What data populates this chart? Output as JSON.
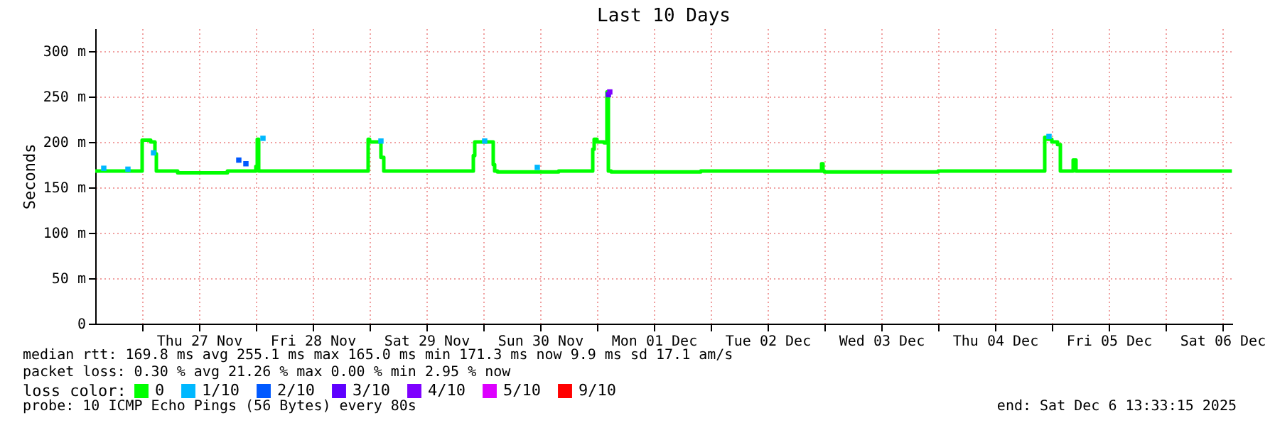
{
  "chart_data": {
    "type": "step",
    "title": "Last 10 Days",
    "ylabel": "Seconds",
    "legend_title": "loss color:",
    "xlim": [
      "2025-11-26T14:06",
      "2025-12-06T14:06"
    ],
    "xticks": [
      {
        "value": "2025-11-27T00:00",
        "label": null
      },
      {
        "value": "2025-11-27T12:00",
        "label": "Thu 27 Nov"
      },
      {
        "value": "2025-11-28T00:00",
        "label": null
      },
      {
        "value": "2025-11-28T12:00",
        "label": "Fri 28 Nov"
      },
      {
        "value": "2025-11-29T00:00",
        "label": null
      },
      {
        "value": "2025-11-29T12:00",
        "label": "Sat 29 Nov"
      },
      {
        "value": "2025-11-30T00:00",
        "label": null
      },
      {
        "value": "2025-11-30T12:00",
        "label": "Sun 30 Nov"
      },
      {
        "value": "2025-12-01T00:00",
        "label": null
      },
      {
        "value": "2025-12-01T12:00",
        "label": "Mon 01 Dec"
      },
      {
        "value": "2025-12-02T00:00",
        "label": null
      },
      {
        "value": "2025-12-02T12:00",
        "label": "Tue 02 Dec"
      },
      {
        "value": "2025-12-03T00:00",
        "label": null
      },
      {
        "value": "2025-12-03T12:00",
        "label": "Wed 03 Dec"
      },
      {
        "value": "2025-12-04T00:00",
        "label": null
      },
      {
        "value": "2025-12-04T12:00",
        "label": "Thu 04 Dec"
      },
      {
        "value": "2025-12-05T00:00",
        "label": null
      },
      {
        "value": "2025-12-05T12:00",
        "label": "Fri 05 Dec"
      },
      {
        "value": "2025-12-06T00:00",
        "label": null
      },
      {
        "value": "2025-12-06T12:00",
        "label": "Sat 06 Dec"
      }
    ],
    "ylim": [
      0,
      325
    ],
    "yticks": [
      0,
      {
        "value": 50,
        "label": "50 m"
      },
      {
        "value": 100,
        "label": "100 m"
      },
      {
        "value": 150,
        "label": "150 m"
      },
      {
        "value": 200,
        "label": "200 m"
      },
      {
        "value": 250,
        "label": "250 m"
      },
      {
        "value": 300,
        "label": "300 m"
      }
    ],
    "grid": true,
    "legend": "bottom",
    "series": [
      {
        "name": "0",
        "color": "#00ff00",
        "x": [
          "2025-11-26T14:06",
          "2025-11-26T23:42",
          "2025-11-27T00:00",
          "2025-11-27T01:48",
          "2025-11-27T02:42",
          "2025-11-27T03:00",
          "2025-11-27T07:30",
          "2025-11-27T16:30",
          "2025-11-27T18:00",
          "2025-11-28T00:00",
          "2025-11-28T00:18",
          "2025-11-28T00:36",
          "2025-11-28T02:06",
          "2025-11-28T23:42",
          "2025-11-29T00:00",
          "2025-11-29T02:24",
          "2025-11-29T03:00",
          "2025-11-29T03:36",
          "2025-11-29T21:54",
          "2025-11-29T22:12",
          "2025-11-29T22:48",
          "2025-11-30T02:06",
          "2025-11-30T02:24",
          "2025-11-30T03:00",
          "2025-11-30T15:54",
          "2025-11-30T23:06",
          "2025-11-30T23:24",
          "2025-12-01T00:00",
          "2025-12-01T01:30",
          "2025-12-01T02:06",
          "2025-12-01T02:24",
          "2025-12-01T03:00",
          "2025-12-01T21:54",
          "2025-12-02T23:24",
          "2025-12-02T23:42",
          "2025-12-03T00:00",
          "2025-12-04T00:00",
          "2025-12-04T22:30",
          "2025-12-04T23:06",
          "2025-12-05T00:00",
          "2025-12-05T01:12",
          "2025-12-05T01:48",
          "2025-12-05T02:24",
          "2025-12-05T04:30",
          "2025-12-05T05:06",
          "2025-12-05T07:12",
          "2025-12-06T14:00"
        ],
        "values": [
          168,
          168,
          202,
          200,
          187,
          168,
          166,
          166,
          168,
          173,
          203,
          168,
          168,
          203,
          200,
          183,
          168,
          168,
          185,
          200,
          200,
          175,
          168,
          167,
          168,
          192,
          203,
          200,
          199,
          255,
          168,
          167,
          168,
          176,
          168,
          167,
          168,
          205,
          203,
          200,
          197,
          168,
          168,
          180,
          168,
          168,
          168
        ]
      },
      {
        "name": "1/10",
        "type": "scatter",
        "color": "#00b8ff",
        "x": [
          "2025-11-26T15:54",
          "2025-11-26T21:00",
          "2025-11-27T02:24",
          "2025-11-28T01:30",
          "2025-11-29T02:24",
          "2025-11-30T00:18",
          "2025-11-30T11:24",
          "2025-12-04T23:24"
        ],
        "values": [
          171,
          170,
          188,
          204,
          201,
          201,
          172,
          206
        ]
      },
      {
        "name": "2/10",
        "type": "scatter",
        "color": "#0059ff",
        "x": [
          "2025-11-27T20:24",
          "2025-11-27T21:54"
        ],
        "values": [
          180,
          176
        ]
      },
      {
        "name": "3/10",
        "type": "scatter",
        "color": "#5e00ff",
        "x": [
          "2025-12-01T02:24"
        ],
        "values": [
          252
        ]
      },
      {
        "name": "4/10",
        "type": "scatter",
        "color": "#7e00ff",
        "x": [
          "2025-12-01T02:42"
        ],
        "values": [
          255
        ]
      },
      {
        "name": "5/10",
        "type": "scatter",
        "color": "#dd00ff"
      },
      {
        "name": "9/10",
        "type": "scatter",
        "color": "#ff0000"
      }
    ],
    "annotations": [
      "median rtt:  169.8 ms avg   255.1 ms max   165.0 ms min   171.3 ms now   9.9 ms sd   17.1   am/s",
      "packet loss: 0.30 % avg   21.26 % max   0.00 % min   2.95 % now",
      "probe:       10 ICMP Echo Pings (56 Bytes) every 80s",
      "end: Sat Dec  6 13:33:15 2025"
    ]
  }
}
